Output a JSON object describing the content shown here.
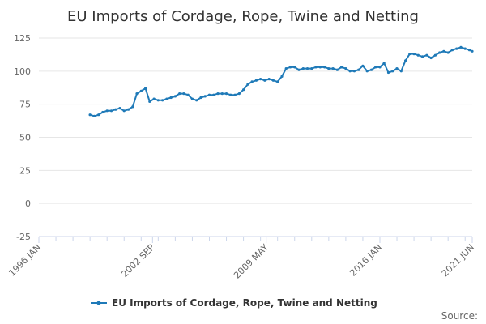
{
  "chart_data": {
    "type": "line",
    "title": "EU Imports of Cordage, Rope, Twine and Netting",
    "xlabel": "",
    "ylabel": "",
    "ylim": [
      -25,
      125
    ],
    "y_ticks": [
      -25,
      0,
      25,
      50,
      75,
      100,
      125
    ],
    "x_range": [
      "1996-01",
      "2021-06"
    ],
    "x_ticks": [
      "1996 JAN",
      "2002 SEP",
      "2009 MAY",
      "2016 JAN",
      "2021 JUN"
    ],
    "grid": true,
    "legend_position": "bottom",
    "series": [
      {
        "name": "EU Imports of Cordage, Rope, Twine and Netting",
        "color": "#1f7ab8",
        "x": [
          "1999-01",
          "1999-04",
          "1999-07",
          "1999-10",
          "2000-01",
          "2000-04",
          "2000-07",
          "2000-10",
          "2001-01",
          "2001-04",
          "2001-07",
          "2001-10",
          "2002-01",
          "2002-04",
          "2002-07",
          "2002-10",
          "2003-01",
          "2003-04",
          "2003-07",
          "2003-10",
          "2004-01",
          "2004-04",
          "2004-07",
          "2004-10",
          "2005-01",
          "2005-04",
          "2005-07",
          "2005-10",
          "2006-01",
          "2006-04",
          "2006-07",
          "2006-10",
          "2007-01",
          "2007-04",
          "2007-07",
          "2007-10",
          "2008-01",
          "2008-04",
          "2008-07",
          "2008-10",
          "2009-01",
          "2009-04",
          "2009-07",
          "2009-10",
          "2010-01",
          "2010-04",
          "2010-07",
          "2010-10",
          "2011-01",
          "2011-04",
          "2011-07",
          "2011-10",
          "2012-01",
          "2012-04",
          "2012-07",
          "2012-10",
          "2013-01",
          "2013-04",
          "2013-07",
          "2013-10",
          "2014-01",
          "2014-04",
          "2014-07",
          "2014-10",
          "2015-01",
          "2015-04",
          "2015-07",
          "2015-10",
          "2016-01",
          "2016-04",
          "2016-07",
          "2016-10",
          "2017-01",
          "2017-04",
          "2017-07",
          "2017-10",
          "2018-01",
          "2018-04",
          "2018-07",
          "2018-10",
          "2019-01",
          "2019-04",
          "2019-07",
          "2019-10",
          "2020-01",
          "2020-04",
          "2020-07",
          "2020-10",
          "2021-01",
          "2021-04",
          "2021-06"
        ],
        "values": [
          67,
          66,
          67,
          69,
          70,
          70,
          71,
          72,
          70,
          71,
          73,
          83,
          85,
          87,
          77,
          79,
          78,
          78,
          79,
          80,
          81,
          83,
          83,
          82,
          79,
          78,
          80,
          81,
          82,
          82,
          83,
          83,
          83,
          82,
          82,
          83,
          86,
          90,
          92,
          93,
          94,
          93,
          94,
          93,
          92,
          96,
          102,
          103,
          103,
          101,
          102,
          102,
          102,
          103,
          103,
          103,
          102,
          102,
          101,
          103,
          102,
          100,
          100,
          101,
          104,
          100,
          101,
          103,
          103,
          106,
          99,
          100,
          102,
          100,
          108,
          113,
          113,
          112,
          111,
          112,
          110,
          112,
          114,
          115,
          114,
          116,
          117,
          118,
          117,
          116,
          115
        ]
      }
    ],
    "source_label": "Source:"
  }
}
